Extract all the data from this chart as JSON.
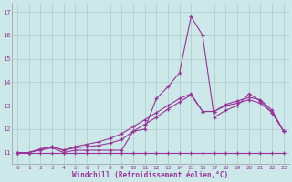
{
  "xlabel": "Windchill (Refroidissement éolien,°C)",
  "background_color": "#cce8e8",
  "grid_color": "#aacccc",
  "line_color": "#993399",
  "xlim": [
    -0.5,
    23.5
  ],
  "ylim": [
    10.5,
    17.4
  ],
  "yticks": [
    11,
    12,
    13,
    14,
    15,
    16,
    17
  ],
  "xticks": [
    0,
    1,
    2,
    3,
    4,
    5,
    6,
    7,
    8,
    9,
    10,
    11,
    12,
    13,
    14,
    15,
    16,
    17,
    18,
    19,
    20,
    21,
    22,
    23
  ],
  "series": [
    [
      11.0,
      11.0,
      11.1,
      11.2,
      11.0,
      11.1,
      11.1,
      11.1,
      11.1,
      11.1,
      11.9,
      12.0,
      13.3,
      13.8,
      14.4,
      16.8,
      16.0,
      12.5,
      12.8,
      13.0,
      13.5,
      13.2,
      12.7,
      11.9
    ],
    [
      11.0,
      11.0,
      11.0,
      11.0,
      11.0,
      11.0,
      11.0,
      11.0,
      11.0,
      11.0,
      11.0,
      11.0,
      11.0,
      11.0,
      11.0,
      11.0,
      11.0,
      11.0,
      11.0,
      11.0,
      11.0,
      11.0,
      11.0,
      11.0
    ],
    [
      11.0,
      11.0,
      11.15,
      11.25,
      11.1,
      11.2,
      11.25,
      11.3,
      11.4,
      11.55,
      11.9,
      12.2,
      12.5,
      12.85,
      13.15,
      13.45,
      12.75,
      12.75,
      13.0,
      13.1,
      13.25,
      13.1,
      12.7,
      11.9
    ],
    [
      11.0,
      11.0,
      11.15,
      11.25,
      11.1,
      11.25,
      11.35,
      11.45,
      11.6,
      11.8,
      12.1,
      12.4,
      12.7,
      13.0,
      13.3,
      13.5,
      12.75,
      12.75,
      13.05,
      13.2,
      13.35,
      13.25,
      12.8,
      11.9
    ]
  ]
}
